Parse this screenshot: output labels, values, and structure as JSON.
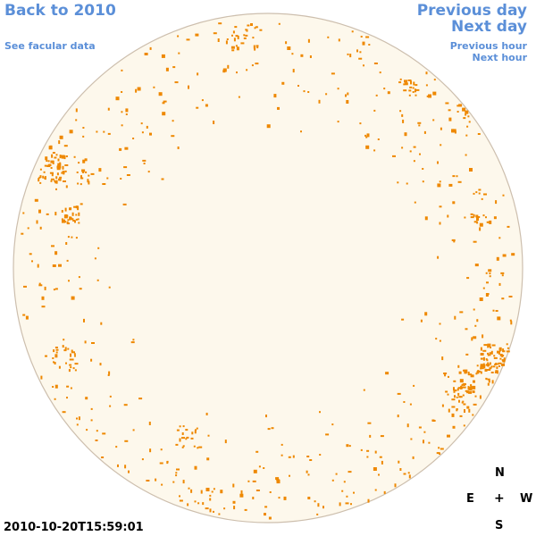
{
  "nav": {
    "back_label": "Back to 2010",
    "facular_label": "See facular data",
    "prev_day_label": "Previous day",
    "next_day_label": "Next day",
    "prev_hour_label": "Previous hour",
    "next_hour_label": "Next hour"
  },
  "timestamp": "2010-10-20T15:59:01",
  "compass": {
    "north": "N",
    "east": "E",
    "center": "+",
    "west": "W",
    "south": "S"
  },
  "colors": {
    "link": "#5b8fd8",
    "disk_fill": "#fdf8ec",
    "disk_stroke": "#cdbfae",
    "facula": "#ee8800"
  }
}
